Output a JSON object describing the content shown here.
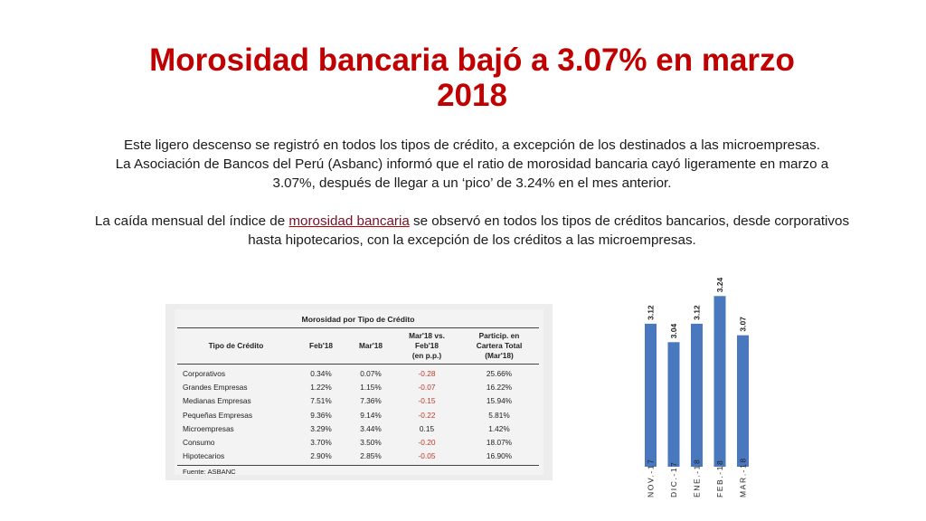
{
  "title": "Morosidad bancaria bajó a 3.07% en marzo 2018",
  "paragraphs": {
    "p1_line1": "Este ligero descenso se registró en todos los tipos de crédito, a excepción de los destinados a las microempresas.",
    "p1_line2": "La Asociación de Bancos del Perú (Asbanc) informó que el ratio de morosidad bancaria cayó ligeramente en marzo a 3.07%, después de llegar a un ‘pico’ de 3.24% en el mes anterior.",
    "p2_before": "La caída mensual del índice de ",
    "p2_link": "morosidad bancaria",
    "p2_after": " se observó en todos los tipos de créditos bancarios, desde corporativos hasta hipotecarios, con la excepción de los créditos a las microempresas."
  },
  "table": {
    "caption": "Morosidad por Tipo de Crédito",
    "headers": {
      "tipo": "Tipo de Crédito",
      "feb": "Feb'18",
      "mar": "Mar'18",
      "var_l1": "Mar'18 vs.",
      "var_l2": "Feb'18",
      "var_l3": "(en p.p.)",
      "part_l1": "Particip. en",
      "part_l2": "Cartera Total",
      "part_l3": "(Mar'18)"
    },
    "rows": [
      {
        "tipo": "Corporativos",
        "feb": "0.34%",
        "mar": "0.07%",
        "var": "-0.28",
        "part": "25.66%"
      },
      {
        "tipo": "Grandes Empresas",
        "feb": "1.22%",
        "mar": "1.15%",
        "var": "-0.07",
        "part": "16.22%"
      },
      {
        "tipo": "Medianas Empresas",
        "feb": "7.51%",
        "mar": "7.36%",
        "var": "-0.15",
        "part": "15.94%"
      },
      {
        "tipo": "Pequeñas Empresas",
        "feb": "9.36%",
        "mar": "9.14%",
        "var": "-0.22",
        "part": "5.81%"
      },
      {
        "tipo": "Microempresas",
        "feb": "3.29%",
        "mar": "3.44%",
        "var": "0.15",
        "part": "1.42%"
      },
      {
        "tipo": "Consumo",
        "feb": "3.70%",
        "mar": "3.50%",
        "var": "-0.20",
        "part": "18.07%"
      },
      {
        "tipo": "Hipotecarios",
        "feb": "2.90%",
        "mar": "2.85%",
        "var": "-0.05",
        "part": "16.90%"
      }
    ],
    "source": "Fuente: ASBANC",
    "negative_color": "#c0392b"
  },
  "chart_data": {
    "type": "bar",
    "categories": [
      "NOV.-17",
      "DIC.-17",
      "ENE.-18",
      "FEB.-18",
      "MAR.-18"
    ],
    "values": [
      3.12,
      3.04,
      3.12,
      3.24,
      3.07
    ],
    "labels": [
      "3.12",
      "3.04",
      "3.12",
      "3.24",
      "3.07"
    ],
    "title": "",
    "xlabel": "",
    "ylabel": "",
    "bar_color": "#4a78bf",
    "grid": false
  },
  "colors": {
    "title": "#c00000",
    "text": "#1a1a1a"
  }
}
